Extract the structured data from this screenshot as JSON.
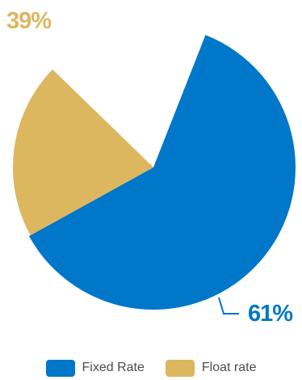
{
  "chart_data": {
    "type": "pie",
    "series": [
      {
        "name": "Fixed Rate",
        "value": 61,
        "label": "61%",
        "color": "#0077c8"
      },
      {
        "name": "Float rate",
        "value": 39,
        "label": "39%",
        "color": "#ddb660"
      }
    ],
    "title": "",
    "legend_position": "bottom"
  }
}
